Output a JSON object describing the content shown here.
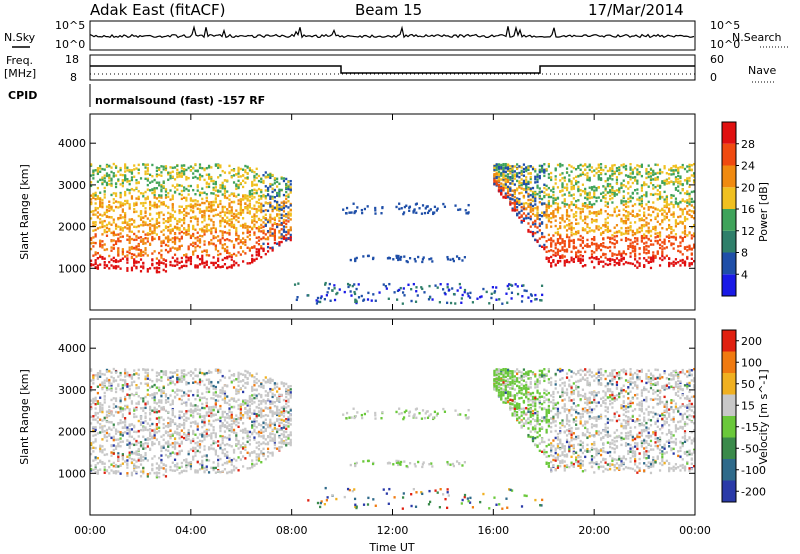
{
  "header": {
    "station": "Adak East (fitACF)",
    "beam": "Beam 15",
    "date": "17/Mar/2014"
  },
  "panels": {
    "nsky_label": "N.Sky",
    "nsky_ticks": [
      "10^5",
      "10^0"
    ],
    "nsearch_label": "N.Search",
    "nsearch_ticks": [
      "10^5",
      "10^0"
    ],
    "freq_label_1": "Freq.",
    "freq_label_2": "[MHz]",
    "freq_ticks": [
      "18",
      "8"
    ],
    "nave_label": "Nave",
    "nave_ticks": [
      "60",
      "0"
    ],
    "cpid_label": "CPID",
    "cpid_text": "normalsound (fast) -157 RF"
  },
  "chart_data": [
    {
      "type": "heatmap",
      "name": "power",
      "ylabel": "Slant Range [km]",
      "yticks": [
        "1000",
        "2000",
        "3000",
        "4000"
      ],
      "ylim": [
        0,
        4700
      ],
      "colorbar_label": "Power [dB]",
      "colorbar_ticks": [
        "4",
        "8",
        "12",
        "16",
        "20",
        "24",
        "28"
      ],
      "colors": [
        "#1a1ae6",
        "#1f4fa8",
        "#2f7f6a",
        "#3fa35a",
        "#f0c020",
        "#f08a10",
        "#f04a10",
        "#e01010"
      ]
    },
    {
      "type": "heatmap",
      "name": "velocity",
      "ylabel": "Slant Range [km]",
      "yticks": [
        "1000",
        "2000",
        "3000",
        "4000"
      ],
      "ylim": [
        0,
        4700
      ],
      "colorbar_label": "Velocity [m s^-1]",
      "colorbar_ticks": [
        "200",
        "100",
        "50",
        "15",
        "-15",
        "-50",
        "-100",
        "-200"
      ],
      "colors": [
        "#2a3aa8",
        "#2f6a8a",
        "#3a8a4a",
        "#6ac83a",
        "#c8c8c8",
        "#f0b020",
        "#f07a10",
        "#e02010"
      ]
    }
  ],
  "xaxis": {
    "label": "Time UT",
    "ticks": [
      "00:00",
      "04:00",
      "08:00",
      "12:00",
      "16:00",
      "20:00",
      "00:00"
    ]
  }
}
